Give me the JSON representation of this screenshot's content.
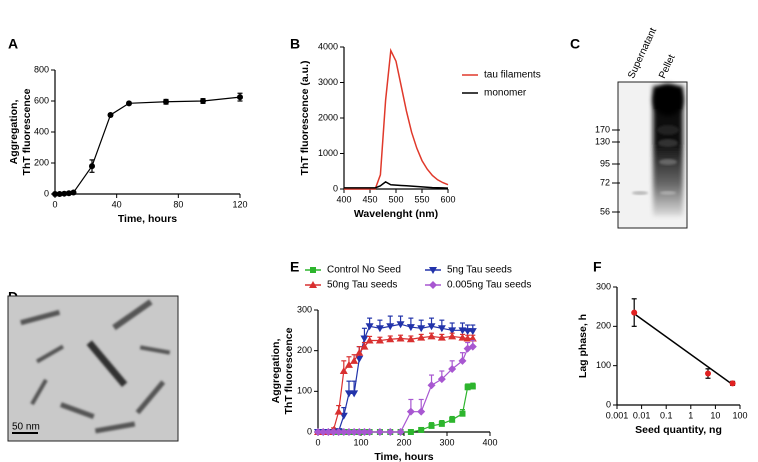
{
  "chart_data": [
    {
      "type": "line",
      "panel": "A",
      "xlabel": "Time, hours",
      "ylabel": [
        "Aggregation,",
        "ThT fluorescence"
      ],
      "x": [
        0,
        3,
        6,
        9,
        12,
        24,
        36,
        48,
        72,
        96,
        120
      ],
      "series": [
        {
          "color": "#000000",
          "marker": "circle",
          "values": [
            0,
            0,
            2,
            5,
            10,
            180,
            510,
            585,
            595,
            600,
            625
          ],
          "errors": [
            0,
            0,
            0,
            0,
            0,
            40,
            8,
            8,
            15,
            15,
            25
          ]
        }
      ],
      "xlim": [
        0,
        120
      ],
      "xticks": [
        0,
        40,
        80,
        120
      ],
      "ylim": [
        0,
        800
      ],
      "yticks": [
        0,
        200,
        400,
        600,
        800
      ]
    },
    {
      "type": "line",
      "panel": "B",
      "xlabel": "Wavelenght (nm)",
      "ylabel": [
        "ThT fluorescence (a.u.)"
      ],
      "x": [
        400,
        410,
        420,
        430,
        440,
        450,
        460,
        470,
        480,
        490,
        500,
        510,
        520,
        530,
        540,
        550,
        560,
        570,
        580,
        590,
        600
      ],
      "series": [
        {
          "name": "tau filaments",
          "color": "#e0392b",
          "values": [
            0,
            0,
            0,
            0,
            0,
            0,
            0,
            400,
            2500,
            3900,
            3600,
            2900,
            2200,
            1600,
            1150,
            800,
            560,
            380,
            260,
            180,
            120
          ]
        },
        {
          "name": "monomer",
          "color": "#000000",
          "values": [
            30,
            30,
            30,
            30,
            30,
            30,
            30,
            90,
            200,
            120,
            110,
            100,
            90,
            80,
            70,
            60,
            50,
            40,
            35,
            30,
            25
          ]
        }
      ],
      "xlim": [
        400,
        600
      ],
      "xticks": [
        400,
        450,
        500,
        550,
        600
      ],
      "ylim": [
        0,
        4000
      ],
      "yticks": [
        0,
        1000,
        2000,
        3000,
        4000
      ]
    },
    {
      "type": "line",
      "panel": "E",
      "xlabel": "Time, hours",
      "ylabel": [
        "Aggregation,",
        "ThT fluorescence"
      ],
      "error_direction": "up",
      "x": [
        0,
        12,
        24,
        36,
        48,
        60,
        72,
        84,
        96,
        108,
        120,
        144,
        168,
        192,
        216,
        240,
        264,
        288,
        312,
        336,
        348,
        360
      ],
      "series": [
        {
          "name": "Control No Seed",
          "color": "#2db52d",
          "marker": "square",
          "values": [
            0,
            0,
            0,
            0,
            0,
            0,
            0,
            0,
            0,
            0,
            0,
            0,
            0,
            0,
            0,
            5,
            15,
            20,
            30,
            45,
            110,
            112
          ],
          "errors": [
            0,
            0,
            0,
            0,
            0,
            0,
            0,
            0,
            0,
            0,
            0,
            0,
            0,
            0,
            0,
            3,
            8,
            8,
            8,
            10,
            8,
            8
          ]
        },
        {
          "name": "5ng Tau seeds",
          "color": "#2233aa",
          "marker": "inverted-triangle",
          "values": [
            0,
            0,
            0,
            0,
            2,
            40,
            95,
            95,
            180,
            230,
            260,
            255,
            260,
            265,
            258,
            255,
            260,
            255,
            250,
            250,
            248,
            248
          ],
          "errors": [
            0,
            0,
            0,
            0,
            2,
            20,
            30,
            30,
            30,
            25,
            20,
            20,
            25,
            20,
            22,
            20,
            20,
            20,
            18,
            18,
            15,
            15
          ]
        },
        {
          "name": "50ng Tau seeds",
          "color": "#d93030",
          "marker": "triangle",
          "values": [
            0,
            0,
            0,
            5,
            50,
            150,
            165,
            175,
            195,
            210,
            225,
            225,
            228,
            230,
            228,
            232,
            235,
            232,
            235,
            232,
            230,
            230
          ],
          "errors": [
            0,
            0,
            0,
            5,
            15,
            25,
            20,
            15,
            15,
            10,
            10,
            8,
            8,
            8,
            8,
            8,
            8,
            8,
            8,
            8,
            8,
            8
          ]
        },
        {
          "name": "0.005ng Tau seeds",
          "color": "#a857d1",
          "marker": "diamond",
          "values": [
            0,
            0,
            0,
            0,
            0,
            0,
            0,
            0,
            0,
            0,
            0,
            0,
            0,
            0,
            50,
            50,
            115,
            130,
            155,
            175,
            205,
            210
          ],
          "errors": [
            0,
            0,
            0,
            0,
            0,
            0,
            0,
            0,
            0,
            0,
            0,
            0,
            0,
            0,
            30,
            30,
            25,
            20,
            20,
            20,
            15,
            15
          ]
        }
      ],
      "xlim": [
        0,
        400
      ],
      "xticks": [
        0,
        100,
        200,
        300,
        400
      ],
      "ylim": [
        0,
        300
      ],
      "yticks": [
        0,
        100,
        200,
        300
      ]
    },
    {
      "type": "scatter",
      "panel": "F",
      "xlabel": "Seed quantity, ng",
      "ylabel": [
        "Lag phase, h"
      ],
      "xscale": "log",
      "x": [
        0.005,
        5,
        50
      ],
      "series": [
        {
          "color": "#e02020",
          "marker": "circle",
          "values": [
            235,
            80,
            55
          ],
          "errors": [
            35,
            12,
            5
          ]
        }
      ],
      "trend_line": {
        "x": [
          0.005,
          50
        ],
        "y": [
          232,
          52
        ]
      },
      "xlim": [
        0.001,
        100
      ],
      "xticks": [
        0.001,
        0.01,
        0.1,
        1,
        10,
        100
      ],
      "ylim": [
        0,
        300
      ],
      "yticks": [
        0,
        100,
        200,
        300
      ]
    }
  ],
  "blot": {
    "panel": "C",
    "lanes": [
      "Supernatant",
      "Pellet"
    ],
    "markers": [
      170,
      130,
      95,
      72,
      56
    ]
  },
  "micrograph": {
    "panel": "D",
    "scale_bar": "50 nm"
  }
}
